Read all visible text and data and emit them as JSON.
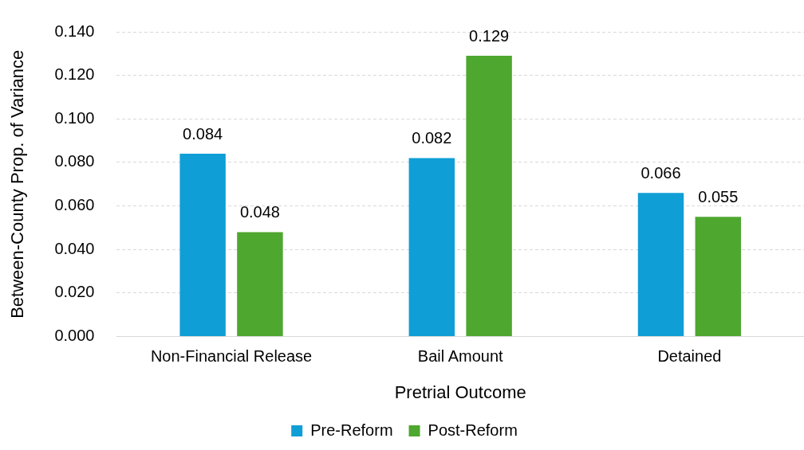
{
  "chart_data": {
    "type": "bar",
    "xlabel": "Pretrial Outcome",
    "ylabel": "Between-County Prop. of Variance",
    "categories": [
      "Non-Financial Release",
      "Bail Amount",
      "Detained"
    ],
    "series": [
      {
        "name": "Pre-Reform",
        "color": "#0f9ed5",
        "values": [
          0.084,
          0.082,
          0.066
        ]
      },
      {
        "name": "Post-Reform",
        "color": "#4ea72e",
        "values": [
          0.048,
          0.129,
          0.055
        ]
      }
    ],
    "ylim": [
      0,
      0.14
    ],
    "yticks": [
      {
        "value": 0,
        "label": "0.000"
      },
      {
        "value": 0.02,
        "label": "0.020"
      },
      {
        "value": 0.04,
        "label": "0.040"
      },
      {
        "value": 0.06,
        "label": "0.060"
      },
      {
        "value": 0.08,
        "label": "0.080"
      },
      {
        "value": 0.1,
        "label": "0.100"
      },
      {
        "value": 0.12,
        "label": "0.120"
      },
      {
        "value": 0.14,
        "label": "0.140"
      }
    ],
    "grid": "y",
    "legend": "bottom",
    "data_labels": true
  }
}
